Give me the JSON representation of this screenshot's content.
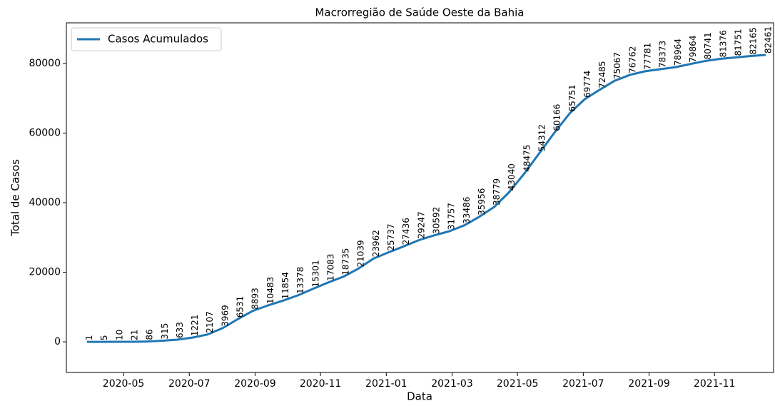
{
  "chart_data": {
    "type": "line",
    "title": "Macrorregião de Saúde Oeste da Bahia",
    "xlabel": "Data",
    "ylabel": "Total de Casos",
    "x": [
      2020.24,
      2020.278,
      2020.317,
      2020.355,
      2020.393,
      2020.432,
      2020.47,
      2020.508,
      2020.546,
      2020.585,
      2020.623,
      2020.661,
      2020.7,
      2020.738,
      2020.776,
      2020.815,
      2020.853,
      2020.891,
      2020.929,
      2020.968,
      2021.006,
      2021.044,
      2021.083,
      2021.121,
      2021.159,
      2021.198,
      2021.236,
      2021.274,
      2021.312,
      2021.351,
      2021.389,
      2021.427,
      2021.466,
      2021.504,
      2021.542,
      2021.58,
      2021.619,
      2021.657,
      2021.695,
      2021.734,
      2021.772,
      2021.81,
      2021.849,
      2021.887,
      2021.925,
      2021.963
    ],
    "series": [
      {
        "name": "Casos Acumulados",
        "color": "#1f77b4",
        "values": [
          1,
          5,
          10,
          21,
          86,
          315,
          633,
          1221,
          2107,
          3969,
          6531,
          8893,
          10483,
          11854,
          13378,
          15301,
          17083,
          18735,
          21039,
          23962,
          25737,
          27436,
          29247,
          30592,
          31757,
          33486,
          35956,
          38779,
          43040,
          48475,
          54312,
          60166,
          65751,
          69774,
          72485,
          75067,
          76762,
          77781,
          78373,
          78964,
          79864,
          80741,
          81376,
          81751,
          82165,
          82461
        ]
      }
    ],
    "xlim": [
      2020.188,
      2021.983
    ],
    "xticks": [
      {
        "value": 2020.333,
        "label": "2020-05"
      },
      {
        "value": 2020.5,
        "label": "2020-07"
      },
      {
        "value": 2020.667,
        "label": "2020-09"
      },
      {
        "value": 2020.833,
        "label": "2020-11"
      },
      {
        "value": 2021.0,
        "label": "2021-01"
      },
      {
        "value": 2021.167,
        "label": "2021-03"
      },
      {
        "value": 2021.333,
        "label": "2021-05"
      },
      {
        "value": 2021.5,
        "label": "2021-07"
      },
      {
        "value": 2021.667,
        "label": "2021-09"
      },
      {
        "value": 2021.833,
        "label": "2021-11"
      }
    ],
    "ylim": [
      -8800,
      91700
    ],
    "yticks": [
      0,
      20000,
      40000,
      60000,
      80000
    ],
    "grid": false,
    "legend": "upper left",
    "value_labels_shown": true
  }
}
